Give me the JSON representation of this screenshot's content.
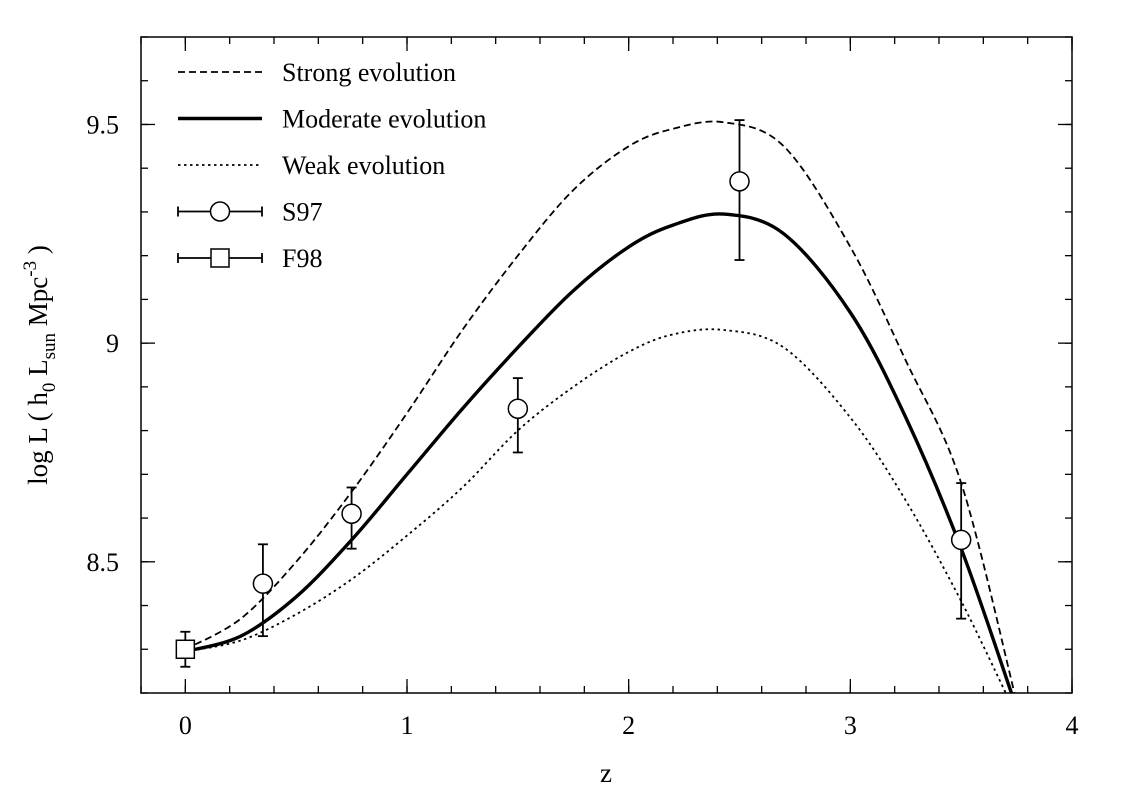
{
  "chart_data": {
    "type": "line",
    "title": "",
    "xlabel": "z",
    "ylabel": {
      "prefix": "log L ( h",
      "h_sub": "0",
      "mid": " L",
      "l_sub": "sun",
      "unit": " Mpc",
      "exp": "-3",
      "suffix": " )"
    },
    "xlim": [
      -0.2,
      4.0
    ],
    "ylim": [
      8.2,
      9.7
    ],
    "xticks": [
      0,
      1,
      2,
      3,
      4
    ],
    "xtick_labels": [
      "0",
      "1",
      "2",
      "3",
      "4"
    ],
    "yticks": [
      8.5,
      9.0,
      9.5
    ],
    "ytick_labels": [
      "8.5",
      "9",
      "9.5"
    ],
    "x_minor_step": 0.2,
    "y_minor_step": 0.1,
    "grid": false,
    "legend_position": "top-left",
    "series": [
      {
        "name": "Strong evolution",
        "style": "dashed",
        "x": [
          0,
          0.25,
          0.5,
          0.75,
          1.0,
          1.25,
          1.5,
          1.75,
          2.0,
          2.2,
          2.43,
          2.7,
          3.0,
          3.25,
          3.5,
          3.75
        ],
        "y": [
          8.3,
          8.37,
          8.5,
          8.66,
          8.84,
          9.03,
          9.2,
          9.35,
          9.45,
          9.49,
          9.505,
          9.45,
          9.22,
          8.96,
          8.68,
          8.18
        ]
      },
      {
        "name": "Moderate evolution",
        "style": "solid-thick",
        "x": [
          0,
          0.25,
          0.5,
          0.75,
          1.0,
          1.25,
          1.5,
          1.75,
          2.0,
          2.2,
          2.43,
          2.7,
          3.0,
          3.25,
          3.5,
          3.74
        ],
        "y": [
          8.295,
          8.33,
          8.42,
          8.55,
          8.7,
          8.85,
          8.99,
          9.12,
          9.22,
          9.27,
          9.295,
          9.25,
          9.07,
          8.83,
          8.53,
          8.18
        ]
      },
      {
        "name": "Weak evolution",
        "style": "dotted",
        "x": [
          0,
          0.25,
          0.5,
          0.75,
          1.0,
          1.25,
          1.5,
          1.75,
          2.0,
          2.2,
          2.43,
          2.7,
          3.0,
          3.25,
          3.5,
          3.72
        ],
        "y": [
          8.295,
          8.32,
          8.38,
          8.46,
          8.56,
          8.67,
          8.8,
          8.9,
          8.98,
          9.02,
          9.03,
          8.99,
          8.83,
          8.64,
          8.41,
          8.18
        ]
      }
    ],
    "points": [
      {
        "name": "S97",
        "marker": "circle",
        "x": [
          0.35,
          0.75,
          1.5,
          2.5,
          3.5
        ],
        "y": [
          8.45,
          8.61,
          8.85,
          9.37,
          8.55
        ],
        "err_low": [
          0.12,
          0.08,
          0.1,
          0.18,
          0.18
        ],
        "err_high": [
          0.09,
          0.06,
          0.07,
          0.14,
          0.13
        ]
      },
      {
        "name": "F98",
        "marker": "square",
        "x": [
          0
        ],
        "y": [
          8.3
        ],
        "err_low": [
          0.04
        ],
        "err_high": [
          0.04
        ]
      }
    ]
  }
}
